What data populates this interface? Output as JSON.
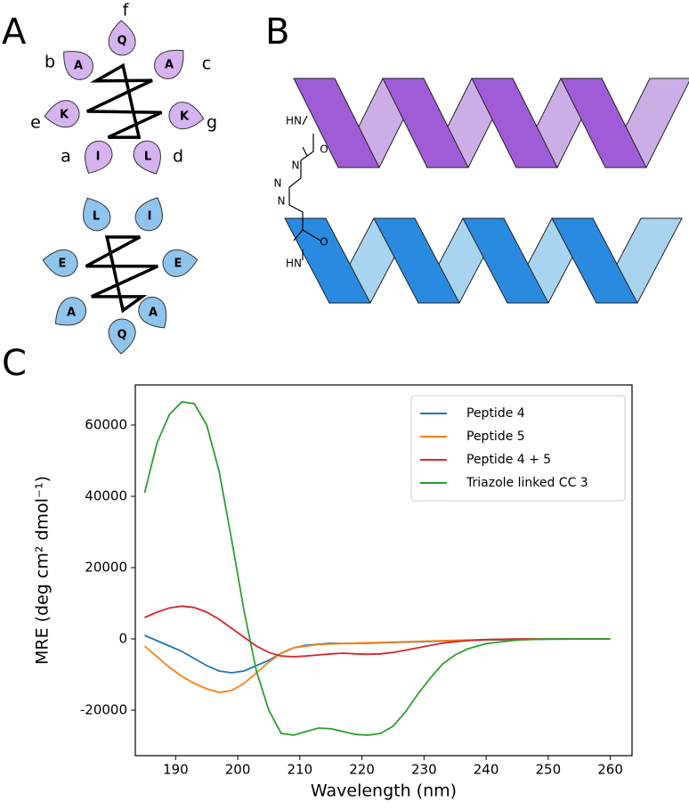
{
  "panel_labels": [
    "A",
    "B",
    "C"
  ],
  "panel_a": {
    "wheel_1": {
      "residues": [
        "Q",
        "A",
        "A",
        "K",
        "K",
        "I",
        "L"
      ],
      "positions": [
        "f",
        "b",
        "c",
        "e",
        "g",
        "a",
        "d"
      ]
    },
    "wheel_2": {
      "residues": [
        "L",
        "I",
        "E",
        "E",
        "A",
        "A",
        "Q"
      ]
    }
  },
  "panel_b": {
    "linker_labels": [
      "HN",
      "O",
      "N",
      "N",
      "N",
      "HN",
      "O"
    ]
  },
  "chart_data": {
    "type": "line",
    "x_label": "Wavelength (nm)",
    "y_label": "MRE (deg cm² dmol⁻¹)",
    "x": [
      185,
      187,
      189,
      191,
      193,
      195,
      197,
      199,
      201,
      203,
      205,
      207,
      209,
      211,
      213,
      215,
      217,
      219,
      221,
      223,
      225,
      227,
      229,
      231,
      233,
      235,
      237,
      240,
      245,
      250,
      255,
      260
    ],
    "series": [
      {
        "name": "Peptide 4",
        "color": "#1f77b4",
        "values": [
          1000,
          -500,
          -2000,
          -3500,
          -5500,
          -7500,
          -9000,
          -9500,
          -9000,
          -7500,
          -6000,
          -4000,
          -2500,
          -1800,
          -1500,
          -1200,
          -1300,
          -1200,
          -1200,
          -1100,
          -1000,
          -900,
          -800,
          -700,
          -600,
          -500,
          -400,
          -300,
          -200,
          -100,
          0,
          0
        ]
      },
      {
        "name": "Peptide 5",
        "color": "#ff7f0e",
        "values": [
          -2000,
          -5000,
          -8000,
          -10500,
          -12500,
          -14000,
          -15000,
          -14500,
          -12500,
          -9500,
          -6500,
          -4000,
          -2500,
          -2000,
          -1600,
          -1400,
          -1300,
          -1200,
          -1100,
          -1000,
          -900,
          -800,
          -700,
          -600,
          -500,
          -400,
          -300,
          -200,
          -100,
          0,
          0,
          0
        ]
      },
      {
        "name": "Peptide 4 + 5",
        "color": "#d62728",
        "values": [
          6000,
          7500,
          8700,
          9200,
          8800,
          7500,
          5500,
          3000,
          500,
          -2000,
          -3800,
          -4800,
          -5000,
          -4800,
          -4500,
          -4200,
          -4000,
          -4200,
          -4300,
          -4200,
          -3800,
          -3200,
          -2500,
          -1800,
          -1200,
          -800,
          -500,
          -200,
          0,
          0,
          0,
          0
        ]
      },
      {
        "name": "Triazole linked CC 3",
        "color": "#2ca02c",
        "values": [
          41000,
          55000,
          63000,
          66500,
          66000,
          60000,
          47000,
          28000,
          8000,
          -9000,
          -20000,
          -26500,
          -27000,
          -26000,
          -25000,
          -25200,
          -26000,
          -26800,
          -27000,
          -26500,
          -24500,
          -20500,
          -15500,
          -11000,
          -7000,
          -4500,
          -2800,
          -1300,
          -300,
          0,
          0,
          0
        ]
      }
    ],
    "xlim": [
      183.5,
      263.5
    ],
    "xticks": [
      190,
      200,
      210,
      220,
      230,
      240,
      250,
      260
    ],
    "ylim": [
      -32750,
      71250
    ],
    "yticks": [
      -20000,
      0,
      20000,
      40000,
      60000
    ],
    "legend": "upper right"
  }
}
